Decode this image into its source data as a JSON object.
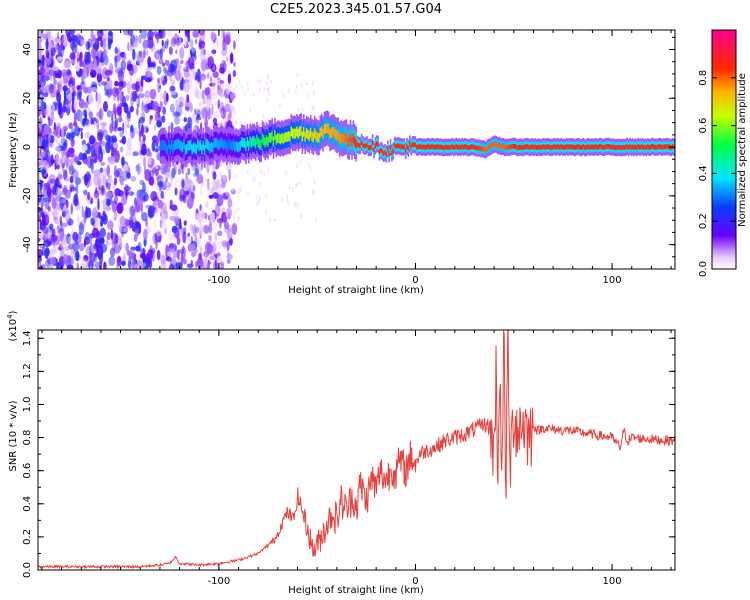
{
  "title": "C2E5.2023.345.01.57.G04",
  "chart_data": [
    {
      "type": "heatmap",
      "title": "C2E5.2023.345.01.57.G04",
      "xlabel": "Height of straight line (km)",
      "ylabel": "Frequency (Hz)",
      "xlim": [
        -192,
        132
      ],
      "ylim": [
        -50,
        48
      ],
      "xticks": [
        -100,
        0,
        100
      ],
      "yticks": [
        -40,
        -20,
        0,
        20,
        40
      ],
      "colorbar": {
        "label": "Normalized spectral amplitude",
        "range": [
          0,
          1
        ],
        "ticks": [
          0.0,
          0.2,
          0.4,
          0.6,
          0.8
        ],
        "colormap": "rainbow (white-purple-blue-cyan-green-yellow-red-magenta)"
      },
      "ridge": {
        "description": "dominant frequency ridge",
        "x": [
          -130,
          -110,
          -95,
          -80,
          -70,
          -60,
          -50,
          -45,
          -40,
          -35,
          -30,
          -25,
          -20,
          -15,
          -10,
          -5,
          0,
          10,
          20,
          30,
          35,
          40,
          45,
          50,
          60,
          80,
          100,
          132
        ],
        "freq": [
          0,
          0,
          1,
          2,
          4,
          6,
          5,
          7,
          5,
          3,
          2,
          1,
          0,
          -2,
          0,
          0,
          0,
          0,
          0,
          0,
          -1,
          1,
          0,
          0,
          0,
          0,
          0,
          0
        ],
        "amplitude": [
          0.3,
          0.4,
          0.3,
          0.5,
          0.6,
          0.65,
          0.7,
          0.75,
          0.75,
          0.8,
          0.85,
          0.85,
          0.85,
          0.85,
          0.85,
          0.85,
          0.85,
          0.85,
          0.85,
          0.85,
          0.8,
          0.8,
          0.8,
          0.85,
          0.85,
          0.85,
          0.85,
          0.85
        ]
      }
    },
    {
      "type": "line",
      "xlabel": "Height of straight line (km)",
      "ylabel": "SNR (10 * v/v)",
      "ymultiplier": "(x10",
      "ymultiplier_exp": "4",
      "ymultiplier_close": ")",
      "xlim": [
        -192,
        132
      ],
      "ylim": [
        0,
        1.45
      ],
      "xticks": [
        -100,
        0,
        100
      ],
      "yticks": [
        0.0,
        0.2,
        0.4,
        0.6,
        0.8,
        1.0,
        1.2,
        1.4
      ],
      "color": "#e8403a",
      "series": [
        {
          "x": [
            -192,
            -180,
            -160,
            -140,
            -130,
            -125,
            -122,
            -120,
            -110,
            -100,
            -90,
            -85,
            -80,
            -75,
            -72,
            -70,
            -68,
            -65,
            -62,
            -60,
            -58,
            -55,
            -52,
            -50,
            -48,
            -45,
            -42,
            -40,
            -38,
            -35,
            -32,
            -30,
            -28,
            -25,
            -22,
            -20,
            -18,
            -15,
            -12,
            -10,
            -8,
            -5,
            -2,
            0,
            2,
            5,
            10,
            15,
            20,
            25,
            30,
            35,
            38,
            40,
            41,
            42,
            43,
            44,
            45,
            46,
            47,
            48,
            50,
            52,
            55,
            58,
            60,
            62,
            65,
            70,
            80,
            90,
            100,
            104,
            106,
            108,
            110,
            120,
            132
          ],
          "y": [
            0.02,
            0.02,
            0.02,
            0.02,
            0.03,
            0.04,
            0.08,
            0.04,
            0.03,
            0.04,
            0.06,
            0.08,
            0.1,
            0.15,
            0.18,
            0.22,
            0.28,
            0.35,
            0.3,
            0.45,
            0.38,
            0.25,
            0.12,
            0.15,
            0.2,
            0.28,
            0.35,
            0.3,
            0.42,
            0.36,
            0.45,
            0.38,
            0.52,
            0.42,
            0.56,
            0.48,
            0.6,
            0.54,
            0.62,
            0.58,
            0.66,
            0.6,
            0.7,
            0.64,
            0.7,
            0.72,
            0.74,
            0.78,
            0.8,
            0.82,
            0.85,
            0.88,
            0.86,
            0.7,
            1.2,
            0.55,
            1.35,
            0.45,
            1.45,
            0.5,
            1.4,
            0.6,
            0.95,
            0.85,
            0.9,
            0.8,
            0.88,
            0.84,
            0.86,
            0.85,
            0.84,
            0.82,
            0.8,
            0.74,
            0.84,
            0.78,
            0.8,
            0.79,
            0.78
          ]
        }
      ]
    }
  ]
}
